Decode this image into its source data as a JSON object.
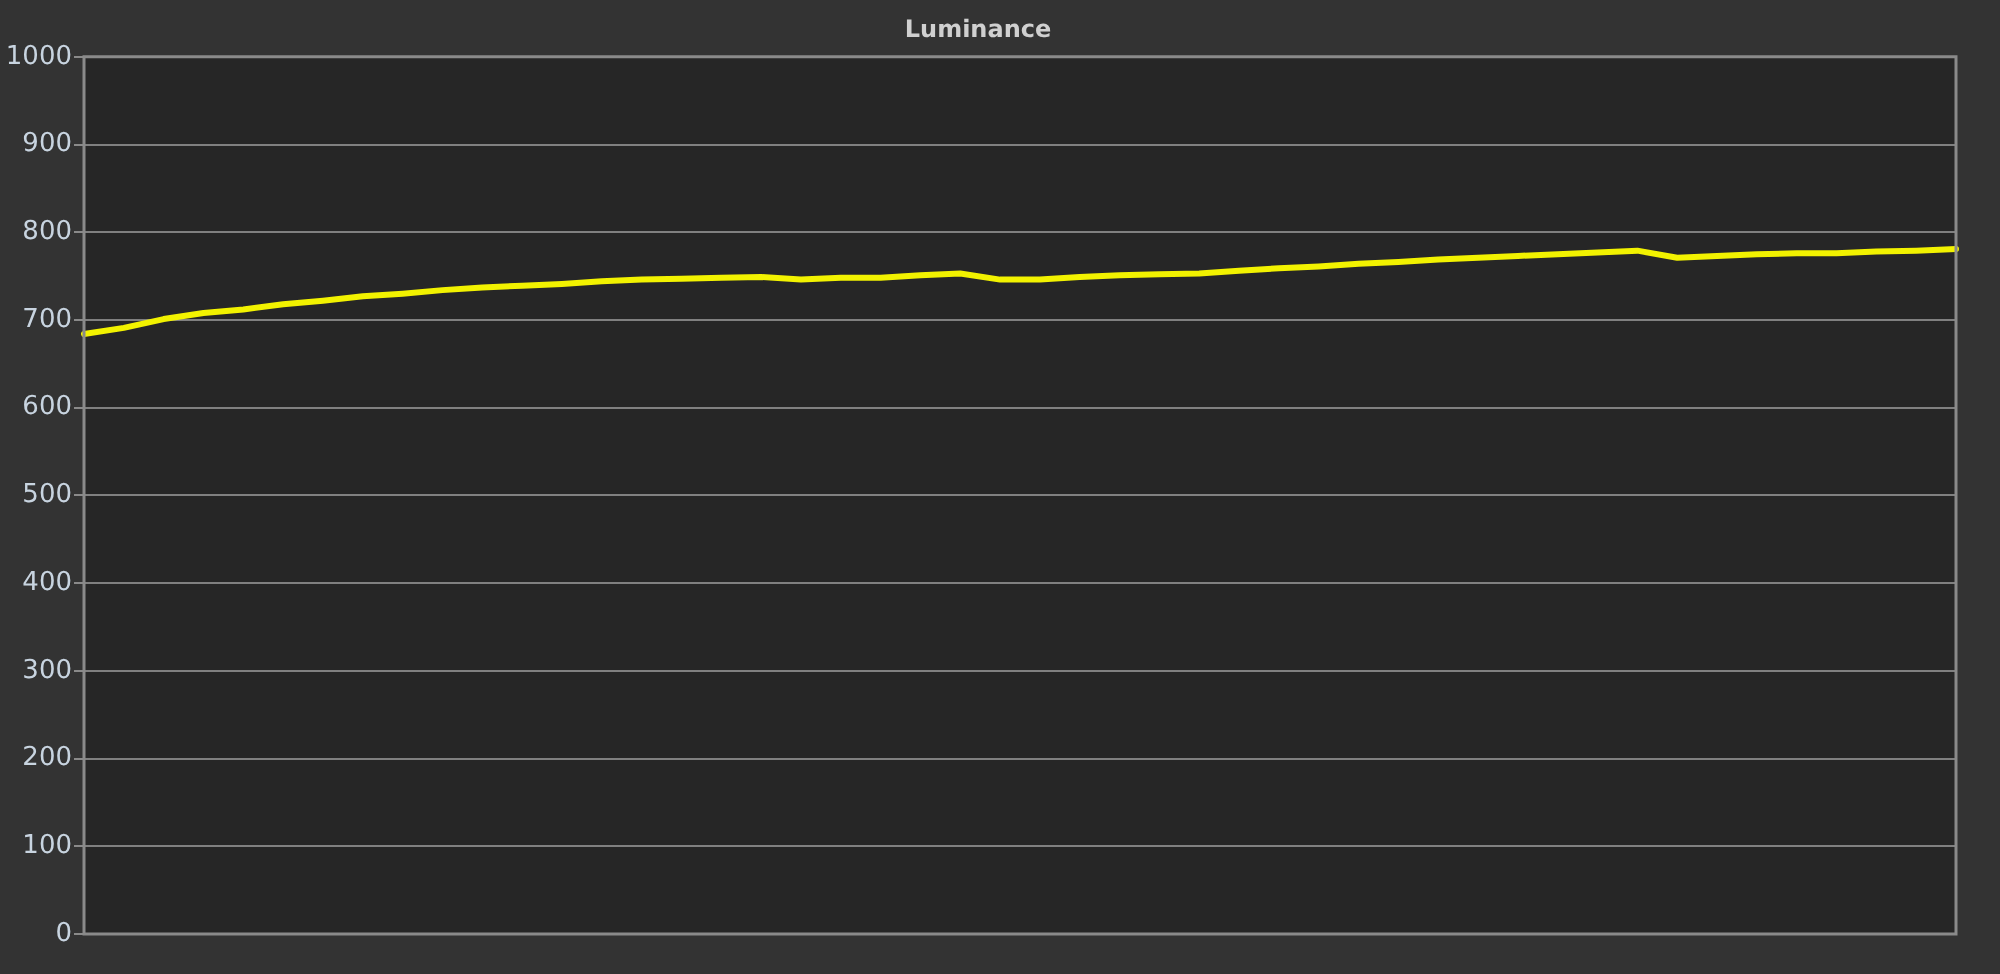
{
  "chart_data": {
    "type": "line",
    "title": "Luminance",
    "categories": [
      null,
      null,
      null,
      null,
      null,
      null,
      null,
      null,
      null,
      null,
      null,
      null,
      null,
      null,
      null,
      null,
      null,
      null,
      null,
      null,
      null,
      null,
      null,
      null,
      null,
      null,
      null,
      null,
      null,
      null,
      null,
      null,
      null,
      null,
      null,
      null,
      null,
      null,
      null,
      null,
      null,
      null,
      null,
      null,
      null,
      null,
      null,
      null
    ],
    "series": [
      {
        "color": "#f2f200",
        "values": [
          684,
          691,
          701,
          708,
          712,
          718,
          722,
          727,
          730,
          734,
          737,
          739,
          741,
          744,
          746,
          747,
          748,
          749,
          746,
          748,
          748,
          751,
          753,
          746,
          746,
          749,
          751,
          752,
          753,
          756,
          759,
          761,
          764,
          766,
          769,
          771,
          773,
          775,
          777,
          779,
          771,
          773,
          775,
          776,
          776,
          778,
          779,
          781
        ]
      }
    ],
    "ylim": [
      0,
      1000
    ],
    "yticks": [
      0,
      100,
      200,
      300,
      400,
      500,
      600,
      700,
      800,
      900,
      1000
    ],
    "grid": "y",
    "legend": false,
    "marker": "none",
    "line_style": "solid",
    "tick_labels": "y"
  }
}
